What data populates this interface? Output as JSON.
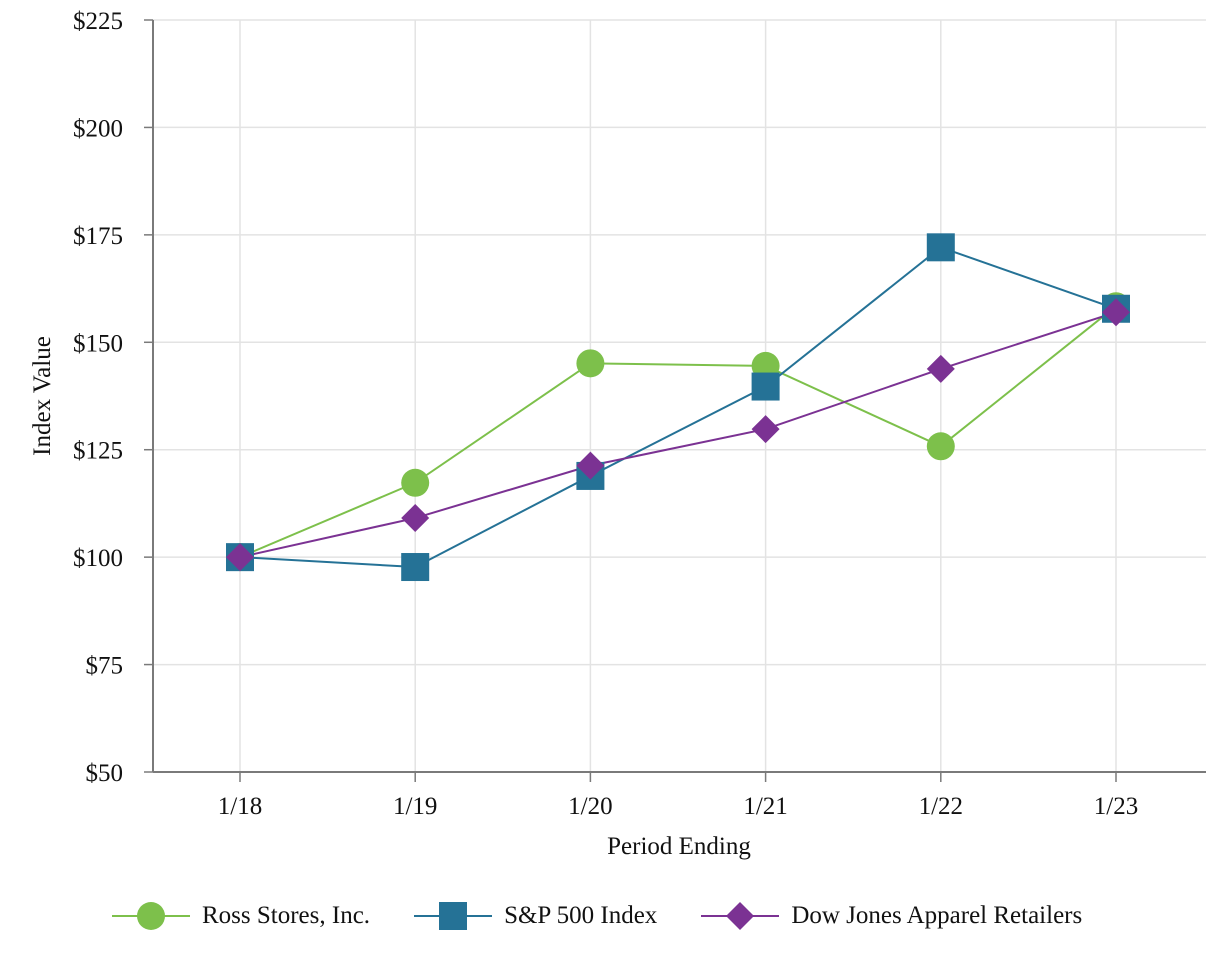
{
  "chart_data": {
    "type": "line",
    "title": "",
    "xlabel": "Period Ending",
    "ylabel": "Index Value",
    "categories": [
      "1/18",
      "1/19",
      "1/20",
      "1/21",
      "1/22",
      "1/23"
    ],
    "ylim": [
      50,
      225
    ],
    "yticks": [
      50,
      75,
      100,
      125,
      150,
      175,
      200,
      225
    ],
    "ytick_labels": [
      "$50",
      "$75",
      "$100",
      "$125",
      "$150",
      "$175",
      "$200",
      "$225"
    ],
    "grid": true,
    "legend_position": "bottom",
    "series": [
      {
        "name": "Ross Stores, Inc.",
        "color": "#7dc04b",
        "marker": "circle",
        "values": [
          100,
          117.3,
          145.1,
          144.5,
          125.8,
          158.4
        ]
      },
      {
        "name": "S&P 500 Index",
        "color": "#257296",
        "marker": "square",
        "values": [
          100,
          97.7,
          118.9,
          139.7,
          172.1,
          157.8
        ]
      },
      {
        "name": "Dow Jones Apparel Retailers",
        "color": "#7b3293",
        "marker": "diamond",
        "values": [
          100,
          109.1,
          121.3,
          129.8,
          143.8,
          157.0
        ]
      }
    ]
  }
}
